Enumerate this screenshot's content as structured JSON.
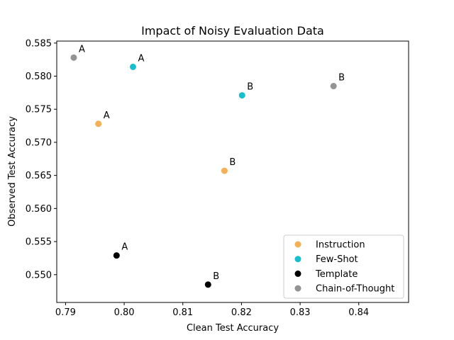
{
  "chart_data": {
    "type": "scatter",
    "title": "Impact of Noisy Evaluation Data",
    "xlabel": "Clean Test Accuracy",
    "ylabel": "Observed Test Accuracy",
    "xlim": [
      0.7885,
      0.8485
    ],
    "ylim": [
      0.5458,
      0.5853
    ],
    "xticks": [
      0.79,
      0.8,
      0.81,
      0.82,
      0.83,
      0.84
    ],
    "xtick_labels": [
      "0.79",
      "0.80",
      "0.81",
      "0.82",
      "0.83",
      "0.84"
    ],
    "yticks": [
      0.55,
      0.555,
      0.56,
      0.565,
      0.57,
      0.575,
      0.58,
      0.585
    ],
    "ytick_labels": [
      "0.550",
      "0.555",
      "0.560",
      "0.565",
      "0.570",
      "0.575",
      "0.580",
      "0.585"
    ],
    "grid": false,
    "legend_position": "bottom-right",
    "series": [
      {
        "name": "Instruction",
        "color": "#f5b055",
        "points": [
          {
            "x": 0.7956,
            "y": 0.5728,
            "label": "A"
          },
          {
            "x": 0.8171,
            "y": 0.5657,
            "label": "B"
          }
        ]
      },
      {
        "name": "Few-Shot",
        "color": "#17becf",
        "points": [
          {
            "x": 0.8015,
            "y": 0.5814,
            "label": "A"
          },
          {
            "x": 0.8201,
            "y": 0.5771,
            "label": "B"
          }
        ]
      },
      {
        "name": "Template",
        "color": "#000000",
        "points": [
          {
            "x": 0.7987,
            "y": 0.5529,
            "label": "A"
          },
          {
            "x": 0.8143,
            "y": 0.5485,
            "label": "B"
          }
        ]
      },
      {
        "name": "Chain-of-Thought",
        "color": "#939393",
        "points": [
          {
            "x": 0.7914,
            "y": 0.5828,
            "label": "A"
          },
          {
            "x": 0.8357,
            "y": 0.5785,
            "label": "B"
          }
        ]
      }
    ]
  }
}
